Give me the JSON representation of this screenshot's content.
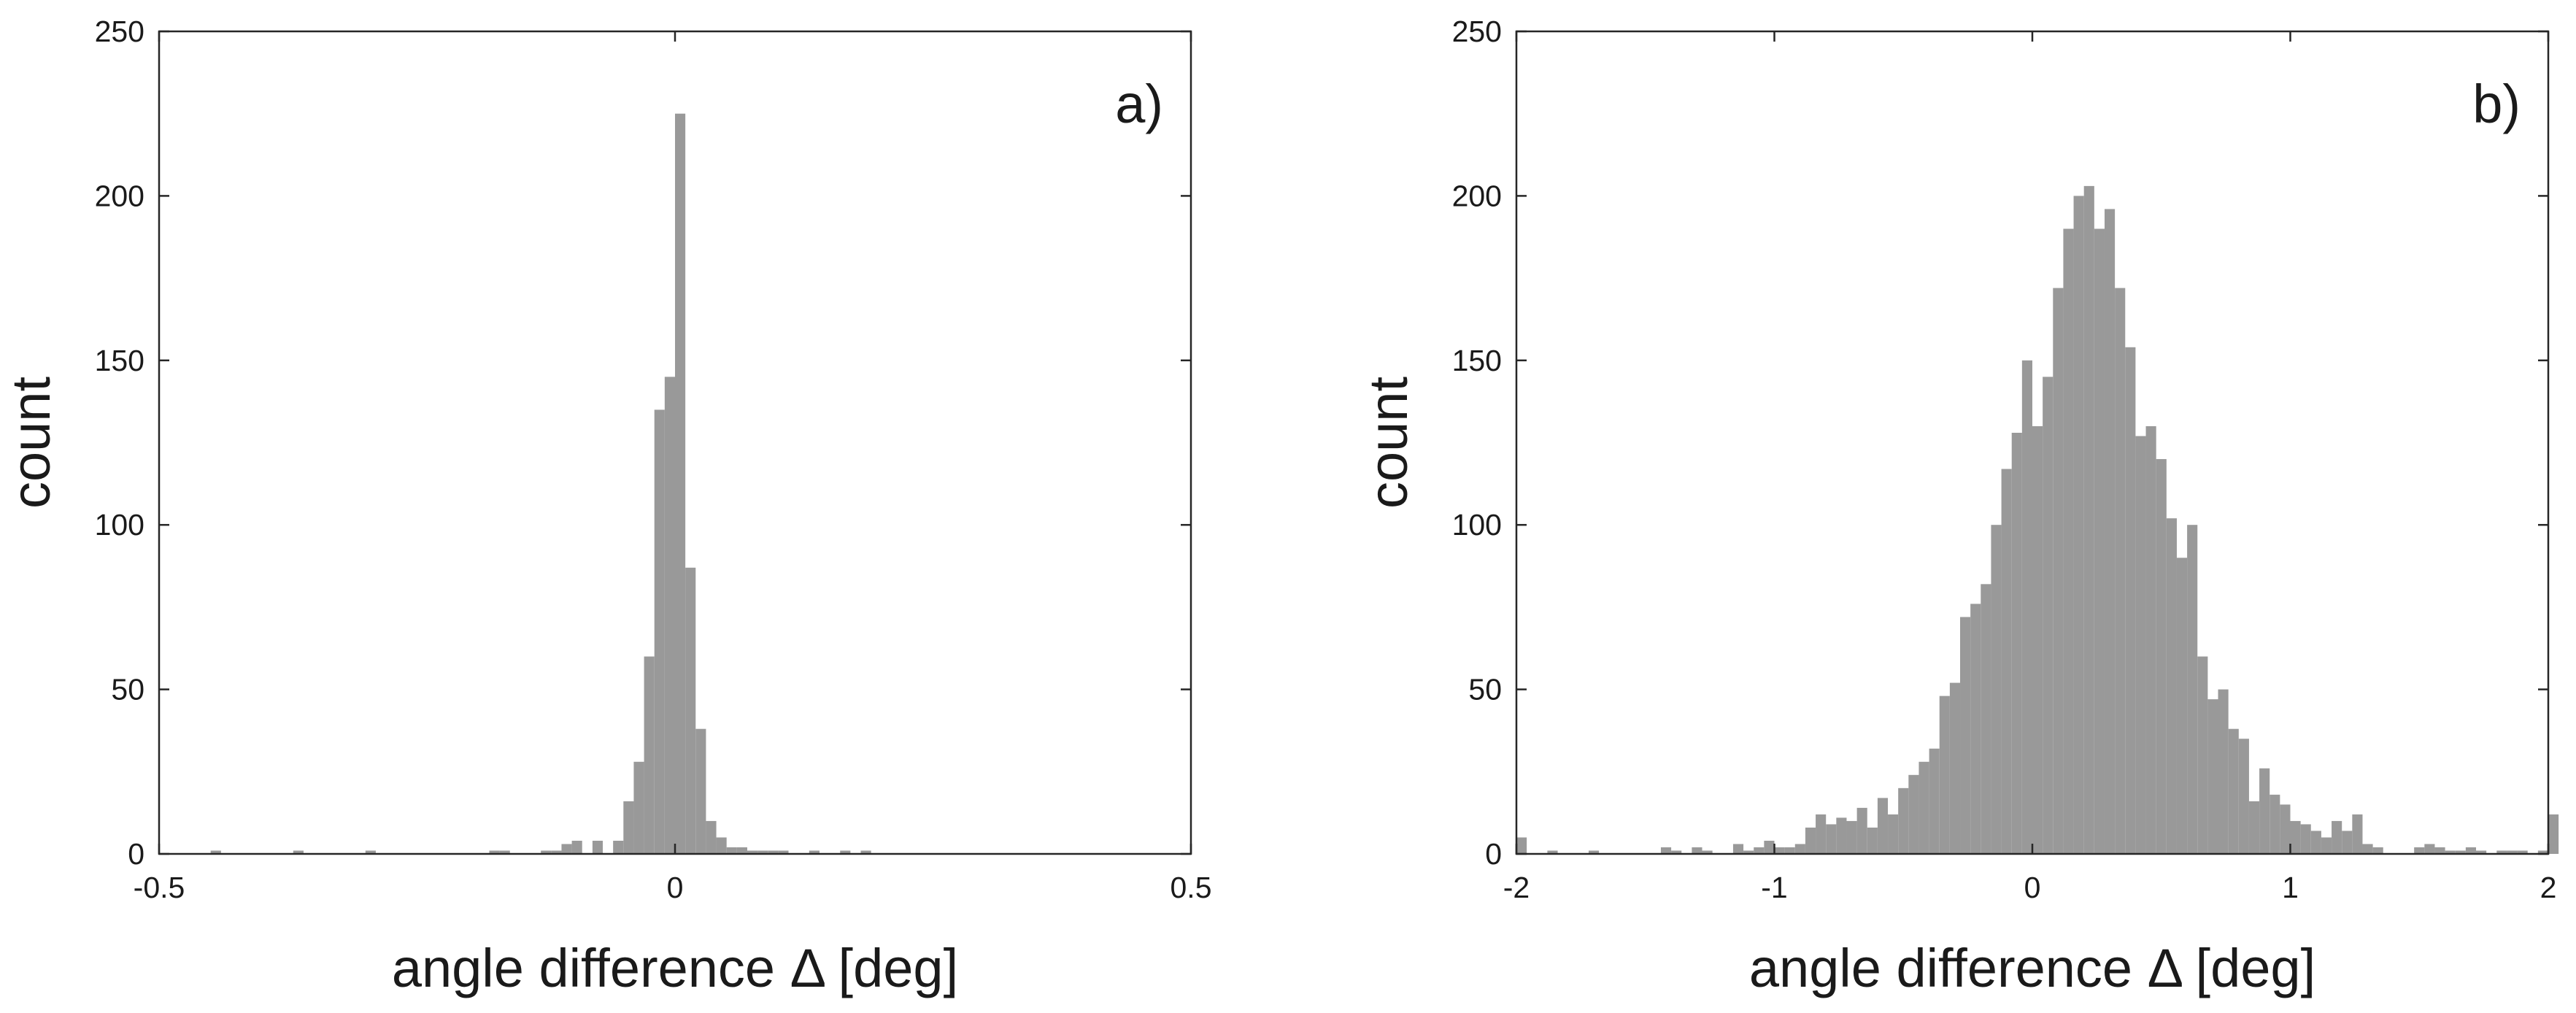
{
  "chart_data": [
    {
      "type": "bar",
      "panel_label": "a)",
      "xlabel": "angle difference Δ [deg]",
      "ylabel": "count",
      "xlim": [
        -0.5,
        0.5
      ],
      "ylim": [
        0,
        250
      ],
      "xticks": [
        -0.5,
        0,
        0.5
      ],
      "xtick_labels": [
        "-0.5",
        "0",
        "0.5"
      ],
      "yticks": [
        0,
        50,
        100,
        150,
        200,
        250
      ],
      "ytick_labels": [
        "0",
        "50",
        "100",
        "150",
        "200",
        "250"
      ],
      "bin_width": 0.01,
      "bin_starts": [
        -0.45,
        -0.37,
        -0.3,
        -0.18,
        -0.17,
        -0.13,
        -0.12,
        -0.11,
        -0.1,
        -0.08,
        -0.06,
        -0.05,
        -0.04,
        -0.03,
        -0.02,
        -0.01,
        0.0,
        0.01,
        0.02,
        0.03,
        0.04,
        0.05,
        0.06,
        0.07,
        0.08,
        0.09,
        0.1,
        0.13,
        0.16,
        0.18
      ],
      "values": [
        1,
        1,
        1,
        1,
        1,
        1,
        1,
        3,
        4,
        4,
        4,
        16,
        28,
        60,
        135,
        145,
        225,
        87,
        38,
        10,
        5,
        2,
        2,
        1,
        1,
        1,
        1,
        1,
        1,
        1
      ],
      "grid": false
    },
    {
      "type": "bar",
      "panel_label": "b)",
      "xlabel": "angle difference Δ [deg]",
      "ylabel": "count",
      "xlim": [
        -2,
        2
      ],
      "ylim": [
        0,
        250
      ],
      "xticks": [
        -2,
        -1,
        0,
        1,
        2
      ],
      "xtick_labels": [
        "-2",
        "-1",
        "0",
        "1",
        "2"
      ],
      "yticks": [
        0,
        50,
        100,
        150,
        200,
        250
      ],
      "ytick_labels": [
        "0",
        "50",
        "100",
        "150",
        "200",
        "250"
      ],
      "bin_width": 0.04,
      "bin_start": -2.0,
      "values": [
        5,
        0,
        0,
        1,
        0,
        0,
        0,
        1,
        0,
        0,
        0,
        0,
        0,
        0,
        2,
        1,
        0,
        2,
        1,
        0,
        0,
        3,
        1,
        2,
        4,
        2,
        2,
        3,
        8,
        12,
        9,
        11,
        10,
        14,
        8,
        17,
        12,
        20,
        24,
        28,
        32,
        48,
        52,
        72,
        76,
        82,
        100,
        117,
        128,
        150,
        130,
        145,
        172,
        190,
        200,
        203,
        190,
        196,
        172,
        154,
        127,
        130,
        120,
        102,
        90,
        100,
        60,
        47,
        50,
        38,
        35,
        16,
        26,
        18,
        15,
        10,
        9,
        7,
        5,
        10,
        7,
        12,
        3,
        2,
        0,
        0,
        0,
        2,
        3,
        2,
        1,
        1,
        2,
        1,
        0,
        1,
        1,
        1,
        0,
        1,
        12
      ],
      "grid": false
    }
  ]
}
